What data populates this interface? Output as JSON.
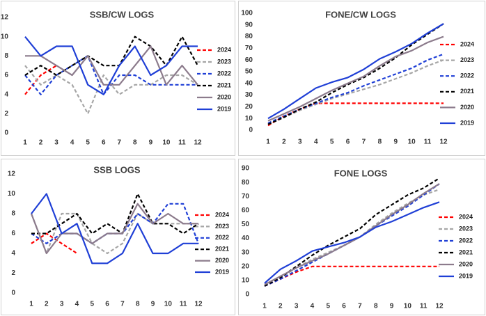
{
  "chart_data": [
    {
      "type": "line",
      "title": "SSB/CW LOGS",
      "categories": [
        1,
        2,
        3,
        4,
        5,
        6,
        7,
        8,
        9,
        10,
        11,
        12
      ],
      "ylim": [
        0,
        12
      ],
      "yticks": [
        0,
        2,
        4,
        6,
        8,
        10,
        12
      ],
      "legend": "right",
      "series": [
        {
          "name": "2024",
          "color": "#ff0000",
          "style": "dashed",
          "values": [
            4,
            6,
            7,
            null,
            null,
            null,
            null,
            null,
            null,
            null,
            null,
            null
          ]
        },
        {
          "name": "2023",
          "color": "#a6a6a6",
          "style": "dashed",
          "values": [
            7,
            5,
            6,
            5,
            2,
            6,
            4,
            5,
            5,
            6,
            6,
            5
          ]
        },
        {
          "name": "2022",
          "color": "#1f3fd6",
          "style": "dashed",
          "values": [
            6,
            4,
            6,
            7,
            8,
            4,
            6,
            6,
            5,
            5,
            5,
            5
          ]
        },
        {
          "name": "2021",
          "color": "#000000",
          "style": "dashed",
          "values": [
            6,
            7,
            6,
            7,
            8,
            7,
            7,
            10,
            9,
            7,
            10,
            7
          ]
        },
        {
          "name": "2020",
          "color": "#8c7b8c",
          "style": "solid",
          "values": [
            8,
            8,
            7,
            6,
            8,
            5,
            5,
            7,
            9,
            5,
            7,
            5
          ]
        },
        {
          "name": "2019",
          "color": "#1f3fd6",
          "style": "solid",
          "values": [
            10,
            8,
            9,
            9,
            5,
            4,
            7,
            9,
            6,
            7,
            9,
            9
          ]
        }
      ]
    },
    {
      "type": "line",
      "title": "FONE/CW LOGS",
      "categories": [
        1,
        2,
        3,
        4,
        5,
        6,
        7,
        8,
        9,
        10,
        11,
        12
      ],
      "ylim": [
        0,
        100
      ],
      "yticks": [
        0,
        10,
        20,
        30,
        40,
        50,
        60,
        70,
        80,
        90,
        100
      ],
      "legend": "right",
      "series": [
        {
          "name": "2024",
          "color": "#ff0000",
          "style": "dashed",
          "values": [
            4,
            12,
            18,
            23,
            23,
            23,
            23,
            23,
            23,
            23,
            23,
            23
          ]
        },
        {
          "name": "2023",
          "color": "#a6a6a6",
          "style": "dashed",
          "values": [
            5,
            11,
            17,
            22,
            27,
            31,
            35,
            39,
            44,
            49,
            55,
            60
          ]
        },
        {
          "name": "2022",
          "color": "#1f3fd6",
          "style": "dashed",
          "values": [
            6,
            12,
            18,
            23,
            28,
            32,
            38,
            43,
            48,
            53,
            60,
            65
          ]
        },
        {
          "name": "2021",
          "color": "#000000",
          "style": "dashed",
          "values": [
            5,
            11,
            18,
            24,
            32,
            39,
            45,
            53,
            62,
            73,
            82,
            91
          ]
        },
        {
          "name": "2020",
          "color": "#8c7b8c",
          "style": "solid",
          "values": [
            8,
            14,
            20,
            27,
            34,
            40,
            46,
            55,
            63,
            68,
            75,
            80
          ]
        },
        {
          "name": "2019",
          "color": "#1f3fd6",
          "style": "solid",
          "values": [
            10,
            18,
            27,
            36,
            41,
            45,
            52,
            61,
            67,
            74,
            83,
            91
          ]
        }
      ]
    },
    {
      "type": "line",
      "title": "SSB LOGS",
      "categories": [
        1,
        2,
        3,
        4,
        5,
        6,
        7,
        8,
        9,
        10,
        11,
        12
      ],
      "ylim": [
        0,
        12
      ],
      "yticks": [
        0,
        2,
        4,
        6,
        8,
        10,
        12
      ],
      "legend": "right",
      "series": [
        {
          "name": "2024",
          "color": "#ff0000",
          "style": "dashed",
          "values": [
            5,
            6,
            5,
            4,
            null,
            null,
            null,
            null,
            null,
            null,
            null,
            null
          ]
        },
        {
          "name": "2023",
          "color": "#a6a6a6",
          "style": "dashed",
          "values": [
            8,
            4,
            8,
            8,
            5,
            4,
            5,
            8,
            7,
            7,
            7,
            7
          ]
        },
        {
          "name": "2022",
          "color": "#1f3fd6",
          "style": "dashed",
          "values": [
            6,
            5,
            6,
            6,
            5,
            6,
            6,
            8,
            7,
            9,
            9,
            5
          ]
        },
        {
          "name": "2021",
          "color": "#000000",
          "style": "dashed",
          "values": [
            6,
            6,
            7,
            8,
            6,
            7,
            6,
            10,
            7,
            7,
            6,
            7
          ]
        },
        {
          "name": "2020",
          "color": "#8c7b8c",
          "style": "solid",
          "values": [
            8,
            4,
            6,
            6,
            5,
            6,
            6,
            9,
            7,
            8,
            7,
            7
          ]
        },
        {
          "name": "2019",
          "color": "#1f3fd6",
          "style": "solid",
          "values": [
            8,
            10,
            6,
            7,
            3,
            3,
            4,
            7,
            4,
            4,
            5,
            5
          ]
        }
      ]
    },
    {
      "type": "line",
      "title": "FONE LOGS",
      "categories": [
        1,
        2,
        3,
        4,
        5,
        6,
        7,
        8,
        9,
        10,
        11,
        12
      ],
      "ylim": [
        0,
        90
      ],
      "yticks": [
        0,
        10,
        20,
        30,
        40,
        50,
        60,
        70,
        80,
        90
      ],
      "legend": "right",
      "series": [
        {
          "name": "2024",
          "color": "#ff0000",
          "style": "dashed",
          "values": [
            6,
            11,
            16,
            20,
            20,
            20,
            20,
            20,
            20,
            20,
            20,
            20
          ]
        },
        {
          "name": "2023",
          "color": "#a6a6a6",
          "style": "dashed",
          "values": [
            6,
            12,
            19,
            25,
            30,
            35,
            41,
            50,
            58,
            65,
            71,
            75
          ]
        },
        {
          "name": "2022",
          "color": "#1f3fd6",
          "style": "dashed",
          "values": [
            6,
            11,
            17,
            23,
            29,
            35,
            41,
            49,
            56,
            63,
            71,
            79
          ]
        },
        {
          "name": "2021",
          "color": "#000000",
          "style": "dashed",
          "values": [
            6,
            12,
            20,
            28,
            35,
            41,
            47,
            57,
            64,
            71,
            76,
            83
          ]
        },
        {
          "name": "2020",
          "color": "#8c7b8c",
          "style": "solid",
          "values": [
            7,
            13,
            19,
            24,
            29,
            35,
            41,
            49,
            57,
            64,
            72,
            79
          ]
        },
        {
          "name": "2019",
          "color": "#1f3fd6",
          "style": "solid",
          "values": [
            8,
            18,
            24,
            31,
            34,
            37,
            41,
            48,
            52,
            57,
            62,
            66
          ]
        }
      ]
    }
  ]
}
